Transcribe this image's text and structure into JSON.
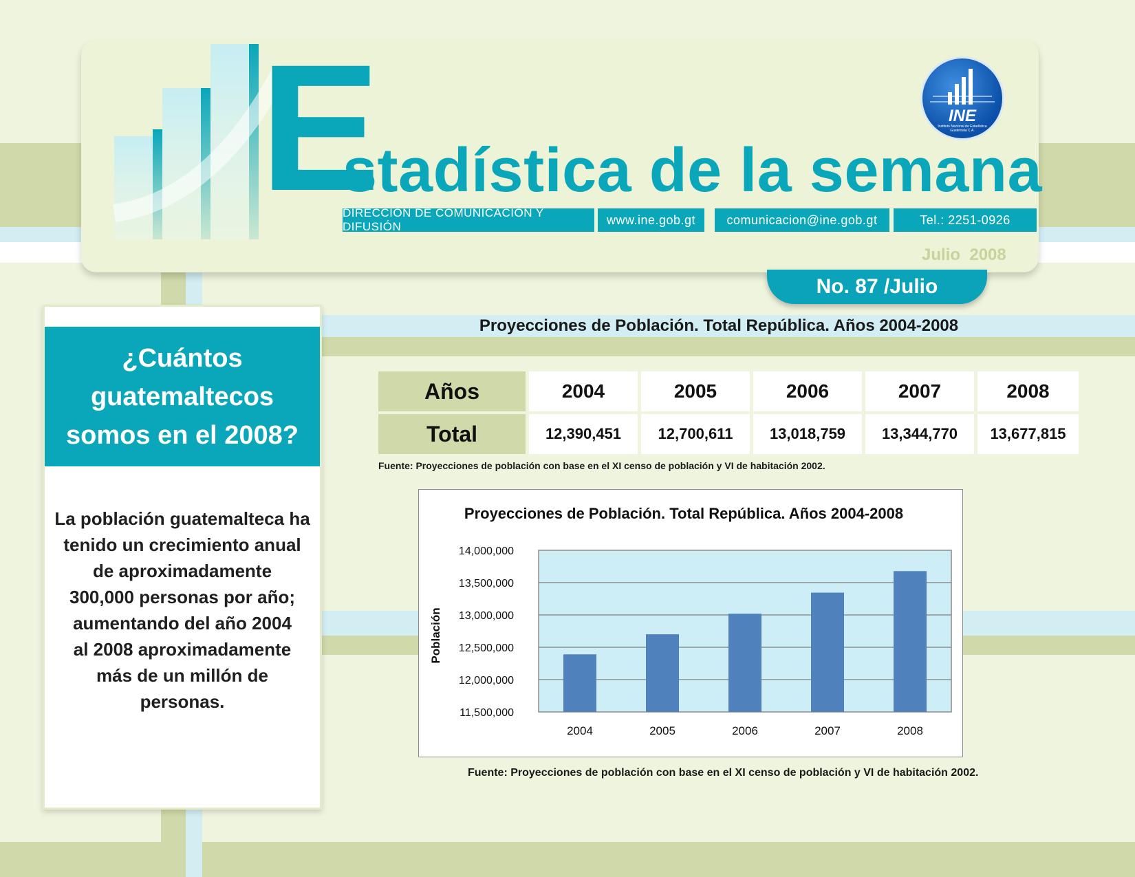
{
  "header": {
    "title_initial": "E",
    "title_rest": "stadística de la semana",
    "info_boxes": [
      "DIRECCIÓN DE COMUNICACIÓN Y DIFUSIÓN",
      "www.ine.gob.gt",
      "comunicacion@ine.gob.gt",
      "Tel.: 2251-0926"
    ],
    "date": "Julio  2008",
    "issue": "No. 87 /Julio",
    "logo_text": "INE",
    "logo_subtext": "Instituto Nacional de Estadística Guatemala C.A."
  },
  "colors": {
    "teal": "#0aa6ba",
    "olive": "#d0d9a9",
    "bar": "#4f81bd",
    "plot_bg": "#cdeef6"
  },
  "left_panel": {
    "question_lines": [
      "¿Cuántos",
      "guatemaltecos",
      "somos en el 2008?"
    ],
    "body_lines": [
      "La población guatemalteca ha",
      "tenido un crecimiento anual",
      "de aproximadamente",
      "300,000 personas por año;",
      "aumentando del año 2004",
      "al 2008 aproximadamente",
      "más de un millón de",
      "personas."
    ]
  },
  "section_title": "Proyecciones de Población. Total República. Años 2004-2008",
  "table": {
    "row_label_years": "Años",
    "row_label_total": "Total",
    "years": [
      "2004",
      "2005",
      "2006",
      "2007",
      "2008"
    ],
    "totals": [
      "12,390,451",
      "12,700,611",
      "13,018,759",
      "13,344,770",
      "13,677,815"
    ],
    "source": "Fuente: Proyecciones de población con base en el XI censo de población y VI de habitación 2002."
  },
  "chart_data": {
    "type": "bar",
    "title": "Proyecciones de Población. Total  República.  Años 2004-2008",
    "ylabel": "Población",
    "xlabel": "",
    "categories": [
      "2004",
      "2005",
      "2006",
      "2007",
      "2008"
    ],
    "values": [
      12390451,
      12700611,
      13018759,
      13344770,
      13677815
    ],
    "ylim": [
      11500000,
      14000000
    ],
    "yticks": [
      "11,500,000",
      "12,000,000",
      "12,500,000",
      "13,000,000",
      "13,500,000",
      "14,000,000"
    ],
    "ytick_values": [
      11500000,
      12000000,
      12500000,
      13000000,
      13500000,
      14000000
    ],
    "grid": true,
    "legend": "none"
  },
  "chart_source": "Fuente: Proyecciones de población con base en el XI censo de población y VI de habitación 2002."
}
